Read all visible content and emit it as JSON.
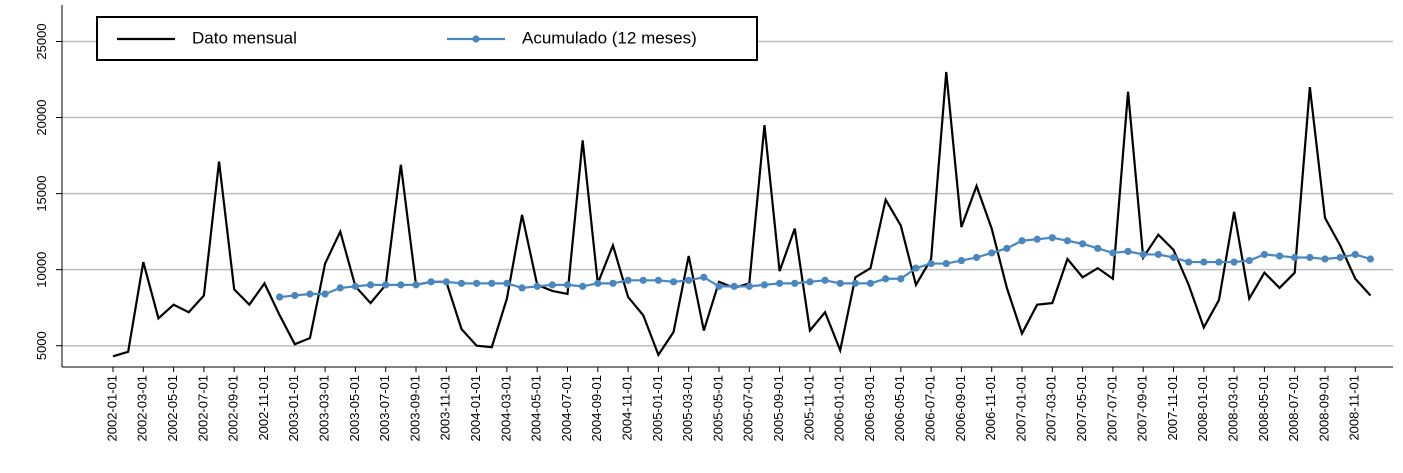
{
  "chart_data": {
    "type": "line",
    "categories": [
      "2002-01-01",
      null,
      "2002-03-01",
      null,
      "2002-05-01",
      null,
      "2002-07-01",
      null,
      "2002-09-01",
      null,
      "2002-11-01",
      null,
      "2003-01-01",
      null,
      "2003-03-01",
      null,
      "2003-05-01",
      null,
      "2003-07-01",
      null,
      "2003-09-01",
      null,
      "2003-11-01",
      null,
      "2004-01-01",
      null,
      "2004-03-01",
      null,
      "2004-05-01",
      null,
      "2004-07-01",
      null,
      "2004-09-01",
      null,
      "2004-11-01",
      null,
      "2005-01-01",
      null,
      "2005-03-01",
      null,
      "2005-05-01",
      null,
      "2005-07-01",
      null,
      "2005-09-01",
      null,
      "2005-11-01",
      null,
      "2006-01-01",
      null,
      "2006-03-01",
      null,
      "2006-05-01",
      null,
      "2006-07-01",
      null,
      "2006-09-01",
      null,
      "2006-11-01",
      null,
      "2007-01-01",
      null,
      "2007-03-01",
      null,
      "2007-05-01",
      null,
      "2007-07-01",
      null,
      "2007-09-01",
      null,
      "2007-11-01",
      null,
      "2008-01-01",
      null,
      "2008-03-01",
      null,
      "2008-05-01",
      null,
      "2008-07-01",
      null,
      "2008-09-01",
      null,
      "2008-11-01",
      null
    ],
    "series": [
      {
        "name": "Dato mensual",
        "color": "#000000",
        "marker": false,
        "values": [
          4300,
          4600,
          10500,
          6800,
          7700,
          7200,
          8300,
          17100,
          8700,
          7700,
          9100,
          7000,
          5100,
          5500,
          10400,
          12500,
          8900,
          7800,
          9000,
          16900,
          9000,
          9200,
          9200,
          6100,
          5000,
          4900,
          8100,
          13600,
          9000,
          8600,
          8400,
          18500,
          9100,
          11600,
          8200,
          7000,
          4400,
          5900,
          10900,
          6000,
          9200,
          8800,
          9100,
          19500,
          9900,
          12700,
          6000,
          7200,
          4700,
          9500,
          10100,
          14600,
          12900,
          9000,
          10700,
          23000,
          12800,
          15500,
          12700,
          8800,
          5800,
          7700,
          7800,
          10700,
          9500,
          10100,
          9400,
          21700,
          10800,
          12300,
          11300,
          9000,
          6200,
          8000,
          13800,
          8100,
          9800,
          8800,
          9800,
          22000,
          13400,
          11600,
          9400,
          8300
        ]
      },
      {
        "name": "Acumulado (12 meses)",
        "color": "#4a86c0",
        "marker": true,
        "values": [
          null,
          null,
          null,
          null,
          null,
          null,
          null,
          null,
          null,
          null,
          null,
          8200,
          8300,
          8400,
          8400,
          8800,
          8900,
          9000,
          9000,
          9000,
          9000,
          9200,
          9200,
          9100,
          9100,
          9100,
          9100,
          8800,
          8900,
          9000,
          9000,
          8900,
          9100,
          9100,
          9300,
          9300,
          9300,
          9200,
          9300,
          9500,
          8900,
          8900,
          8900,
          9000,
          9100,
          9100,
          9200,
          9300,
          9100,
          9100,
          9100,
          9400,
          9400,
          10100,
          10400,
          10400,
          10600,
          10800,
          11100,
          11400,
          11900,
          12000,
          12100,
          11900,
          11700,
          11400,
          11100,
          11200,
          11000,
          11000,
          10800,
          10500,
          10500,
          10500,
          10500,
          10600,
          11000,
          10900,
          10800,
          10800,
          10700,
          10800,
          11000,
          10700
        ]
      }
    ],
    "ylim": [
      3600,
      27400
    ],
    "yticks": [
      5000,
      10000,
      15000,
      20000,
      25000
    ],
    "grid": true,
    "legend": "top-left"
  }
}
